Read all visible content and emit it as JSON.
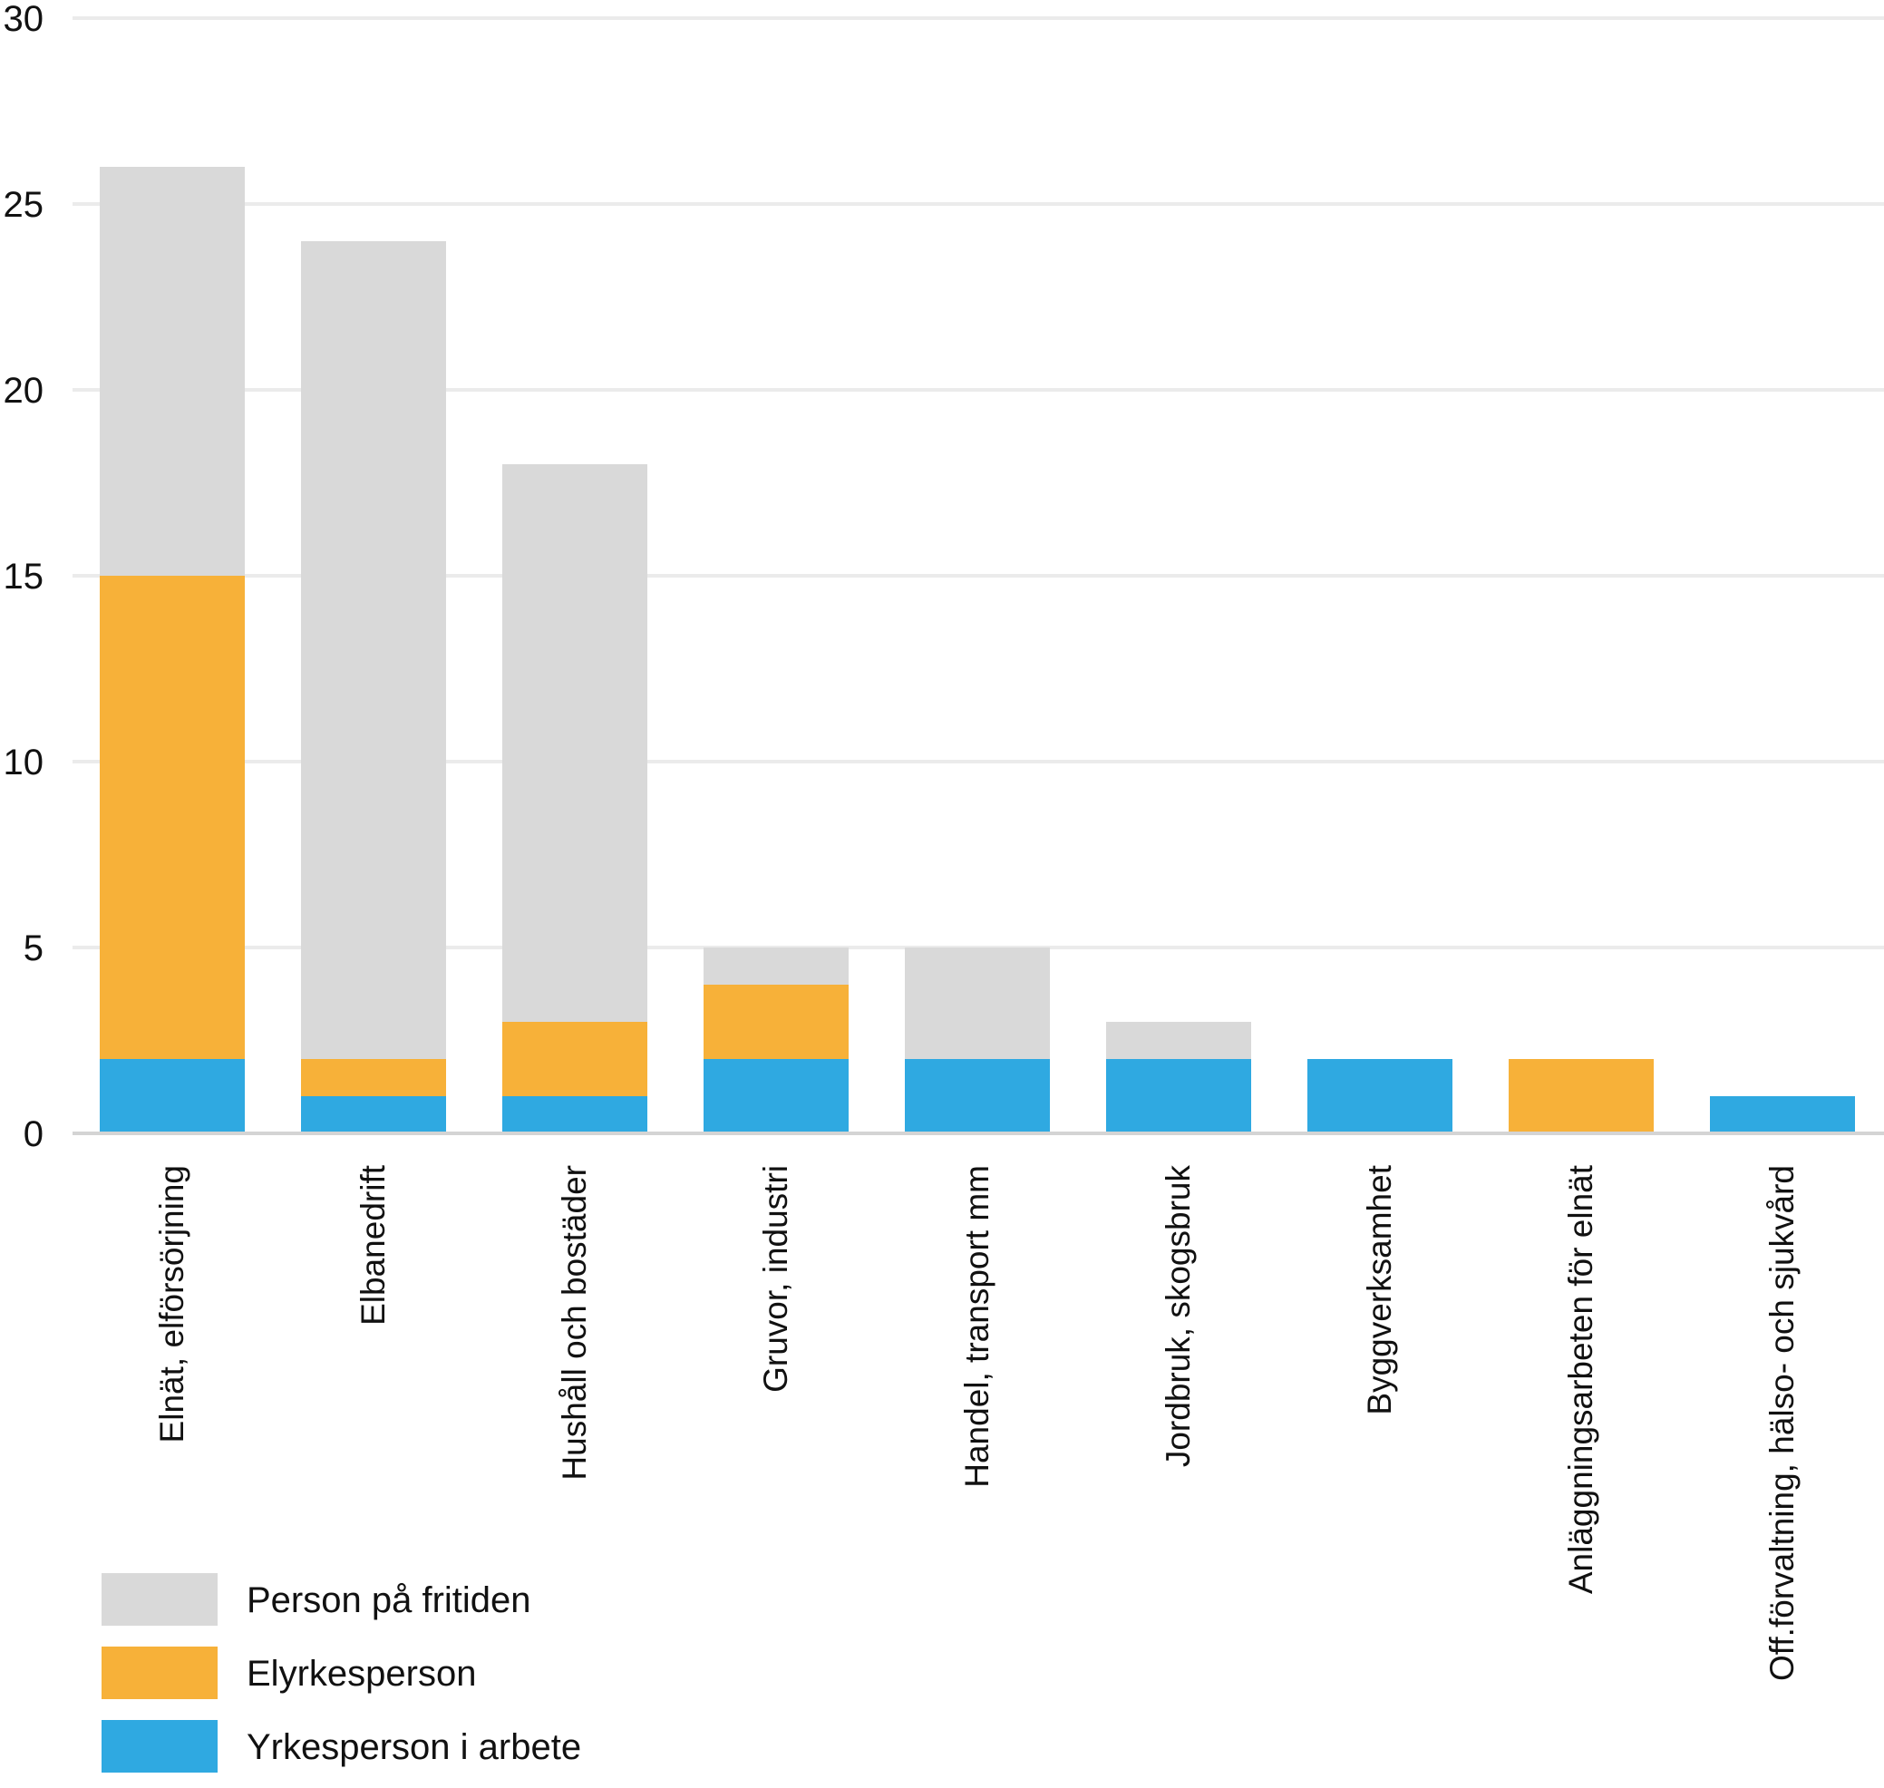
{
  "chart_data": {
    "type": "bar",
    "stacked": true,
    "title": "",
    "xlabel": "",
    "ylabel": "",
    "ylim": [
      0,
      30
    ],
    "yticks": [
      0,
      5,
      10,
      15,
      20,
      25,
      30
    ],
    "grid": true,
    "legend_position": "bottom-left",
    "categories": [
      "Elnät, elförsörjning",
      "Elbanedrift",
      "Hushåll och bostäder",
      "Gruvor, industri",
      "Handel, transport mm",
      "Jordbruk, skogsbruk",
      "Byggverksamhet",
      "Anläggningsarbeten för elnät",
      "Off.förvaltning, hälso- och sjukvård"
    ],
    "series": [
      {
        "name": "Yrkesperson i arbete",
        "color": "#2fa9e1",
        "values": [
          2,
          1,
          1,
          2,
          2,
          2,
          2,
          0,
          1
        ]
      },
      {
        "name": "Elyrkesperson",
        "color": "#f7b139",
        "values": [
          13,
          1,
          2,
          2,
          0,
          0,
          0,
          2,
          0
        ]
      },
      {
        "name": "Person på fritiden",
        "color": "#d9d9d9",
        "values": [
          11,
          22,
          15,
          1,
          3,
          1,
          0,
          0,
          0
        ]
      }
    ],
    "legend_order": [
      "Person på fritiden",
      "Elyrkesperson",
      "Yrkesperson i arbete"
    ]
  }
}
